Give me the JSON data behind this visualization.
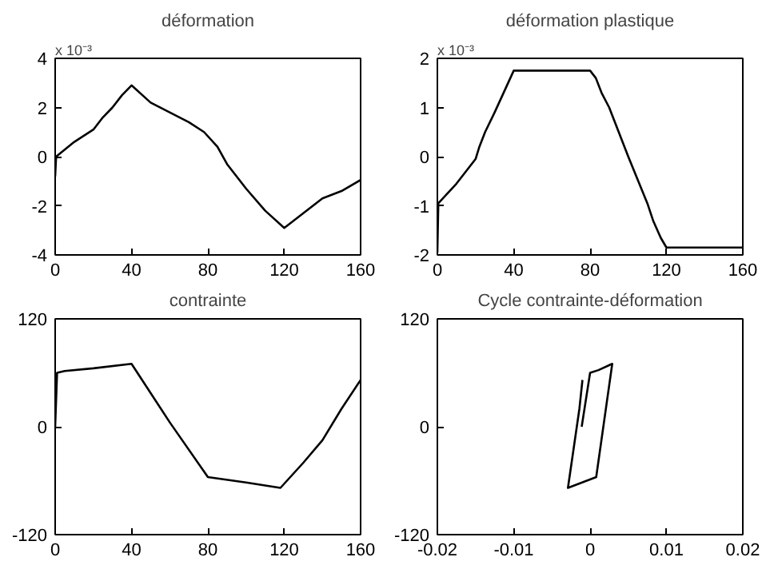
{
  "chart_data": [
    {
      "type": "line",
      "title": "déformation",
      "annotations": [
        "x 10⁻³"
      ],
      "xlim": [
        0,
        160
      ],
      "ylim": [
        -4,
        4
      ],
      "xticks": [
        0,
        40,
        80,
        120,
        160
      ],
      "yticks": [
        -4,
        -2,
        0,
        2,
        4
      ],
      "grid": false,
      "series": [
        {
          "color": "#000000",
          "x": [
            0,
            0.5,
            10,
            20,
            25,
            30,
            35,
            40,
            50,
            60,
            70,
            78,
            85,
            90,
            100,
            110,
            120,
            130,
            140,
            150,
            160
          ],
          "values": [
            -0.8,
            0,
            0.6,
            1.1,
            1.6,
            2.0,
            2.5,
            2.9,
            2.2,
            1.8,
            1.4,
            1.0,
            0.4,
            -0.3,
            -1.3,
            -2.2,
            -2.9,
            -2.3,
            -1.7,
            -1.4,
            -0.95
          ]
        }
      ]
    },
    {
      "type": "line",
      "title": "déformation plastique",
      "annotations": [
        "x 10⁻³"
      ],
      "xlim": [
        0,
        160
      ],
      "ylim": [
        -2,
        2
      ],
      "xticks": [
        0,
        40,
        80,
        120,
        160
      ],
      "yticks": [
        -2,
        -1,
        0,
        1,
        2
      ],
      "grid": false,
      "series": [
        {
          "color": "#000000",
          "x": [
            0,
            0.5,
            10,
            20,
            22,
            25,
            30,
            40,
            80,
            83,
            86,
            90,
            100,
            110,
            113,
            117,
            120,
            160
          ],
          "values": [
            -1.95,
            -0.95,
            -0.55,
            -0.05,
            0.2,
            0.5,
            0.9,
            1.75,
            1.75,
            1.6,
            1.3,
            1.0,
            0.0,
            -0.95,
            -1.3,
            -1.65,
            -1.85,
            -1.85
          ]
        }
      ]
    },
    {
      "type": "line",
      "title": "contrainte",
      "xlim": [
        0,
        160
      ],
      "ylim": [
        -120,
        120
      ],
      "xticks": [
        0,
        40,
        80,
        120,
        160
      ],
      "yticks": [
        -120,
        0,
        120
      ],
      "grid": false,
      "series": [
        {
          "color": "#000000",
          "x": [
            0,
            1,
            5,
            20,
            40,
            60,
            80,
            100,
            118,
            130,
            140,
            150,
            160
          ],
          "values": [
            0,
            60,
            62,
            65,
            70,
            5,
            -56,
            -62,
            -68,
            -40,
            -15,
            20,
            52
          ]
        }
      ]
    },
    {
      "type": "line",
      "title": "Cycle contrainte-déformation",
      "xlim": [
        -0.02,
        0.02
      ],
      "ylim": [
        -120,
        120
      ],
      "xticks": [
        -0.02,
        -0.01,
        0,
        0.01,
        0.02
      ],
      "yticks": [
        -120,
        0,
        120
      ],
      "grid": false,
      "series": [
        {
          "color": "#000000",
          "x": [
            -0.0011,
            0,
            0.0011,
            0.0029,
            0.0008,
            -0.0029,
            -0.0014,
            -0.001
          ],
          "values": [
            0,
            60,
            63,
            70,
            -56,
            -68,
            20,
            52
          ]
        }
      ]
    }
  ]
}
